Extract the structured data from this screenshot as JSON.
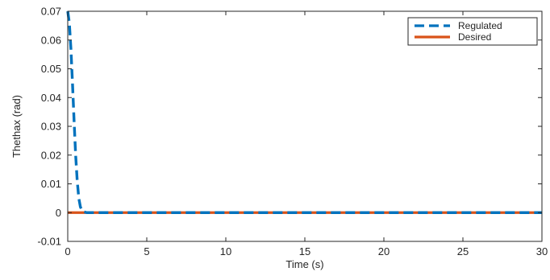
{
  "chart_data": {
    "type": "line",
    "title": "",
    "xlabel": "Time (s)",
    "ylabel": "Thethax (rad)",
    "xlim": [
      0,
      30
    ],
    "ylim": [
      -0.01,
      0.07
    ],
    "x_ticks": [
      0,
      5,
      10,
      15,
      20,
      25,
      30
    ],
    "x_tick_labels": [
      "0",
      "5",
      "10",
      "15",
      "20",
      "25",
      "30"
    ],
    "y_ticks": [
      -0.01,
      0,
      0.01,
      0.02,
      0.03,
      0.04,
      0.05,
      0.06,
      0.07
    ],
    "y_tick_labels": [
      "-0.01",
      "0",
      "0.01",
      "0.02",
      "0.03",
      "0.04",
      "0.05",
      "0.06",
      "0.07"
    ],
    "grid": false,
    "legend_position": "top-right",
    "series": [
      {
        "name": "Regulated",
        "color": "#0072BD",
        "line_style": "dashed",
        "x": [
          0,
          0.1,
          0.2,
          0.3,
          0.4,
          0.5,
          0.6,
          0.7,
          0.8,
          0.9,
          1.0,
          1.2,
          2,
          5,
          10,
          15,
          20,
          25,
          30
        ],
        "y": [
          0.07,
          0.066,
          0.057,
          0.045,
          0.032,
          0.02,
          0.011,
          0.005,
          0.002,
          0.0008,
          0.0003,
          0,
          0,
          0,
          0,
          0,
          0,
          0,
          0
        ]
      },
      {
        "name": "Desired",
        "color": "#D95319",
        "line_style": "solid",
        "x": [
          0,
          30
        ],
        "y": [
          0,
          0
        ]
      }
    ]
  }
}
